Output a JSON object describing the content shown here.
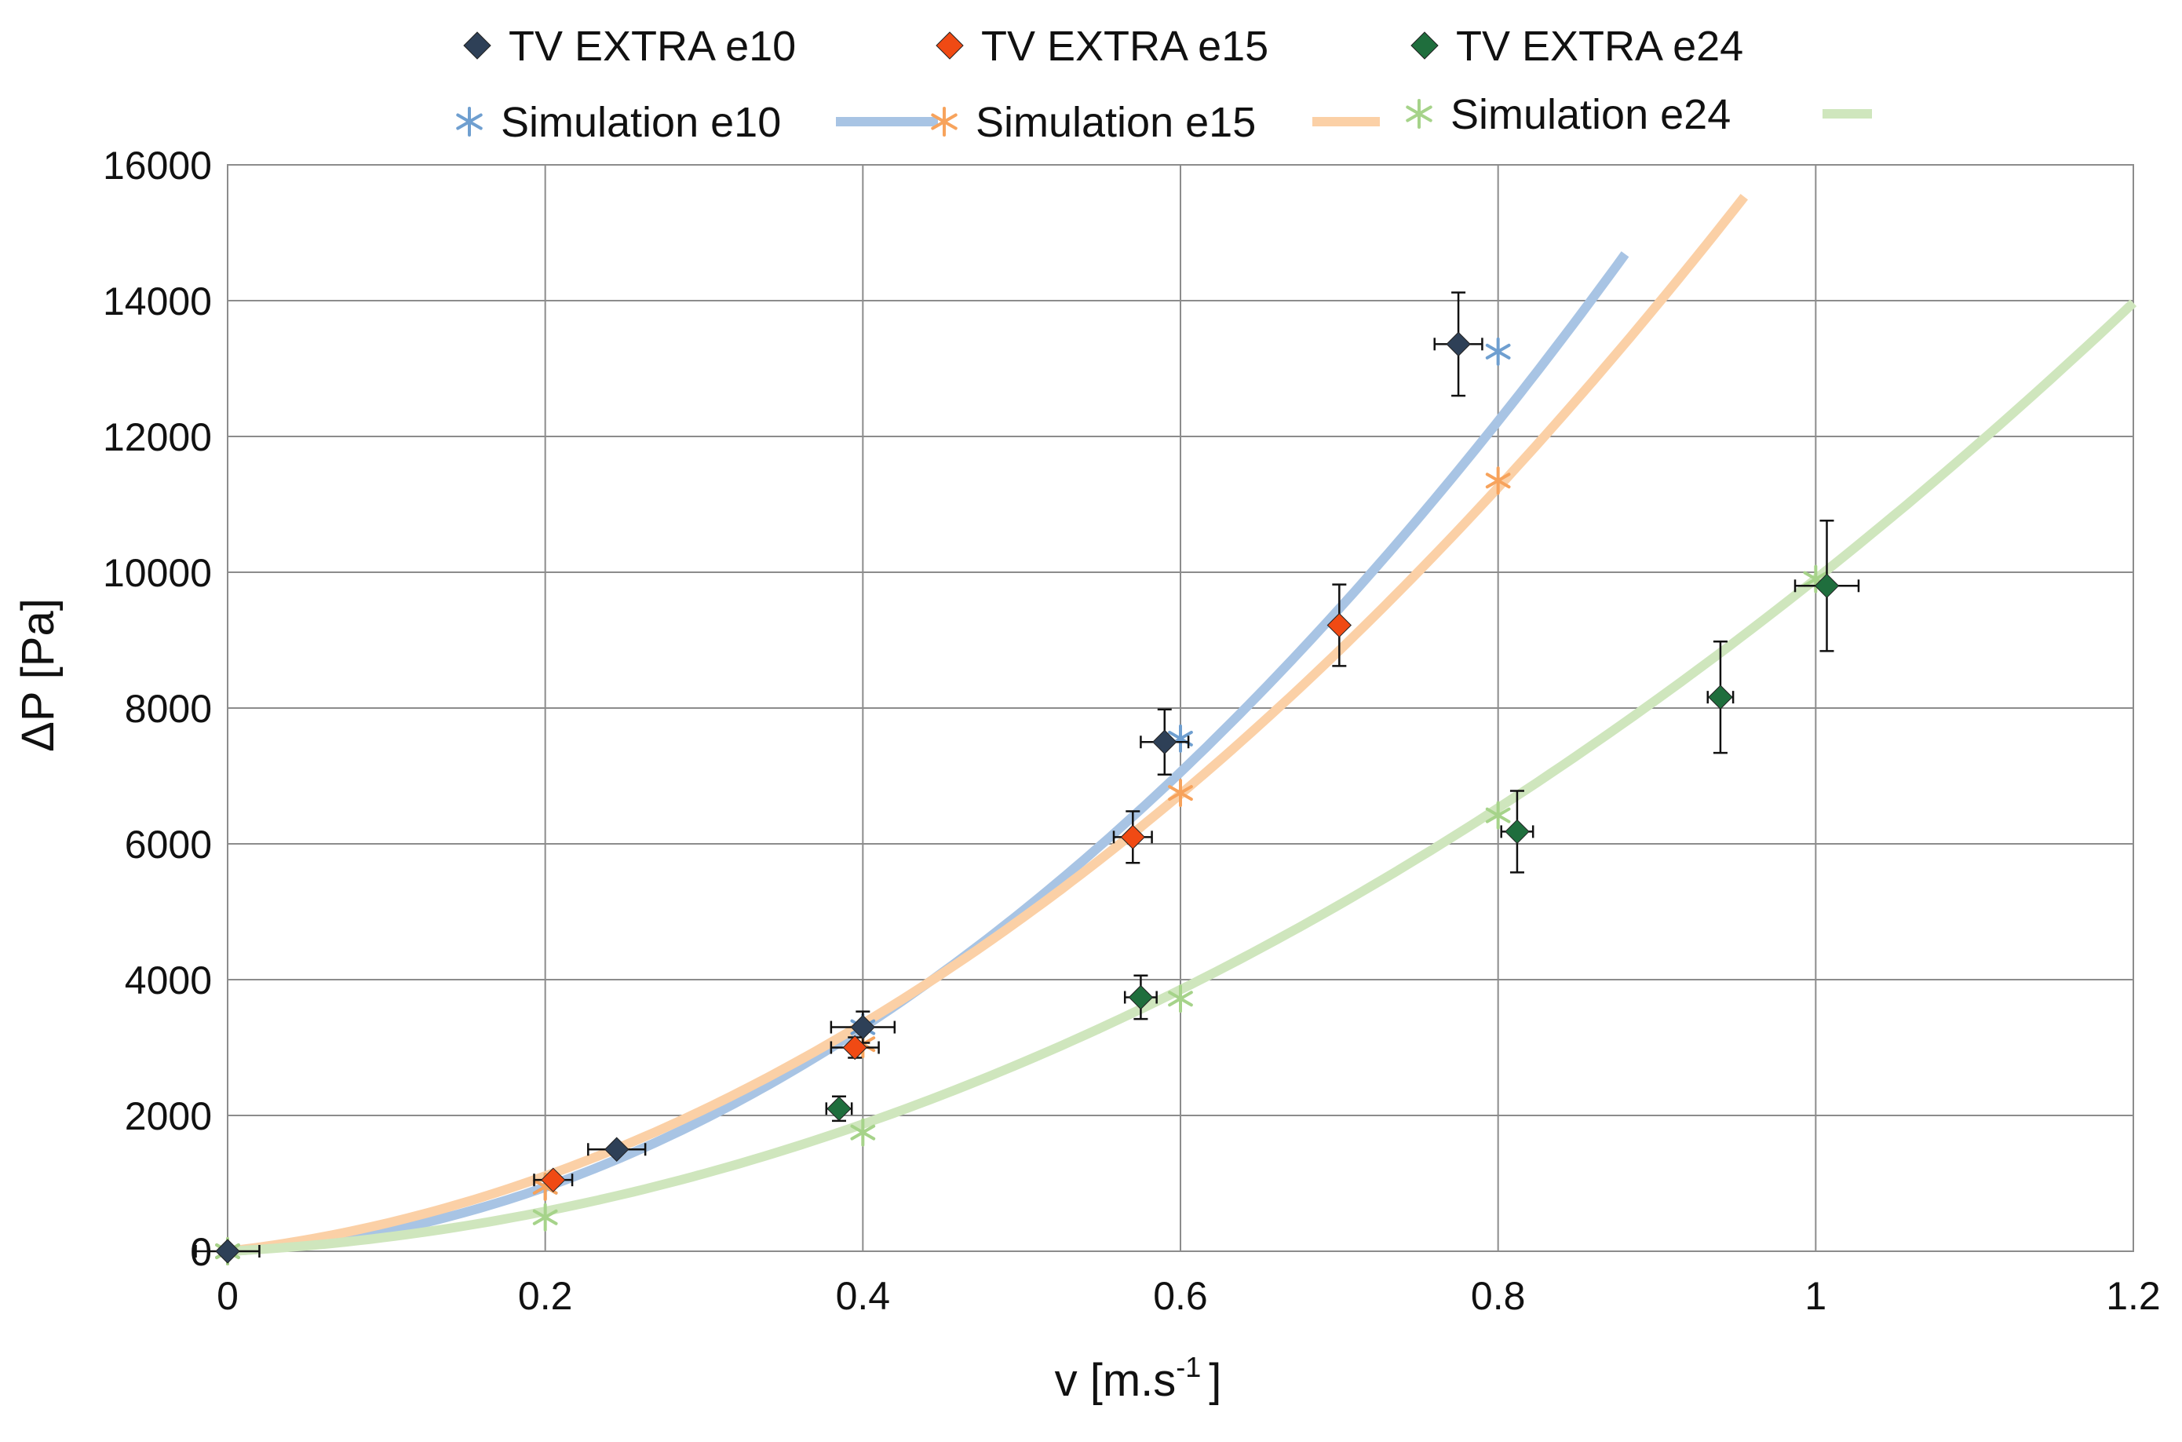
{
  "chart_data": {
    "type": "scatter",
    "xlabel": "v [m.s",
    "xlabel_superscript": "-1",
    "xlabel_suffix": "]",
    "ylabel": "ΔP [Pa]",
    "xlim": [
      0,
      1.2
    ],
    "ylim": [
      0,
      16000
    ],
    "x_ticks": [
      0,
      0.2,
      0.4,
      0.6,
      0.8,
      1,
      1.2
    ],
    "y_ticks": [
      0,
      2000,
      4000,
      6000,
      8000,
      10000,
      12000,
      14000,
      16000
    ],
    "grid": true,
    "legend_position": "top",
    "experimental_series": [
      {
        "name": "TV EXTRA e10",
        "color": "#2e4057",
        "points": [
          {
            "x": 0,
            "y": 0,
            "xerr": 0.02,
            "yerr": 0
          },
          {
            "x": 0.245,
            "y": 1500,
            "xerr": 0.018,
            "yerr": 0
          },
          {
            "x": 0.4,
            "y": 3300,
            "xerr": 0.02,
            "yerr": 230
          },
          {
            "x": 0.59,
            "y": 7500,
            "xerr": 0.015,
            "yerr": 480
          },
          {
            "x": 0.775,
            "y": 13360,
            "xerr": 0.015,
            "yerr": 760
          }
        ]
      },
      {
        "name": "TV EXTRA  e15",
        "color": "#f04a14",
        "points": [
          {
            "x": 0.205,
            "y": 1050,
            "xerr": 0.012,
            "yerr": 0
          },
          {
            "x": 0.395,
            "y": 3000,
            "xerr": 0.015,
            "yerr": 150
          },
          {
            "x": 0.57,
            "y": 6100,
            "xerr": 0.012,
            "yerr": 380
          },
          {
            "x": 0.7,
            "y": 9220,
            "xerr": 0,
            "yerr": 600
          }
        ]
      },
      {
        "name": "TV EXTRA  e24",
        "color": "#1f6e3d",
        "points": [
          {
            "x": 0.385,
            "y": 2100,
            "xerr": 0.008,
            "yerr": 180
          },
          {
            "x": 0.575,
            "y": 3740,
            "xerr": 0.01,
            "yerr": 320
          },
          {
            "x": 0.812,
            "y": 6180,
            "xerr": 0.01,
            "yerr": 600
          },
          {
            "x": 0.94,
            "y": 8160,
            "xerr": 0.008,
            "yerr": 820
          },
          {
            "x": 1.007,
            "y": 9800,
            "xerr": 0.02,
            "yerr": 960
          }
        ]
      }
    ],
    "simulation_series": [
      {
        "name": "Simulation e10",
        "marker_color": "#6f9fd0",
        "line_color": "#a8c4e4",
        "points": [
          [
            0,
            0
          ],
          [
            0.2,
            950
          ],
          [
            0.4,
            3300
          ],
          [
            0.6,
            7550
          ],
          [
            0.8,
            13250
          ]
        ],
        "curve": {
          "a": 17600,
          "b": 1200,
          "x_max": 0.88
        }
      },
      {
        "name": "Simulation e15",
        "marker_color": "#f7a35c",
        "line_color": "#fbd0a6",
        "points": [
          [
            0,
            0
          ],
          [
            0.2,
            950
          ],
          [
            0.4,
            3050
          ],
          [
            0.6,
            6750
          ],
          [
            0.8,
            11350
          ]
        ],
        "curve": {
          "a": 14200,
          "b": 2700,
          "x_max": 0.955
        }
      },
      {
        "name": "Simulation e24",
        "marker_color": "#a6d38a",
        "line_color": "#cfe6bd",
        "points": [
          [
            0,
            0
          ],
          [
            0.2,
            500
          ],
          [
            0.4,
            1750
          ],
          [
            0.6,
            3720
          ],
          [
            0.8,
            6420
          ],
          [
            1,
            9900
          ]
        ],
        "curve": {
          "a": 8700,
          "b": 1200,
          "x_max": 1.2
        }
      }
    ]
  }
}
